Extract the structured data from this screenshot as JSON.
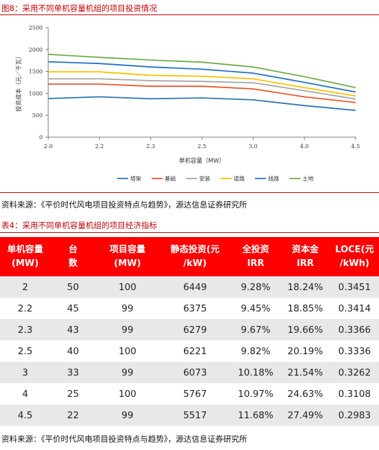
{
  "figure": {
    "caption": "图8：采用不同单机容量机组的项目投资情况",
    "source": "资料来源：《平价时代风电项目投资特点与趋势》，源达信息证券研究所"
  },
  "chart_data": {
    "type": "line",
    "categories": [
      "2.0",
      "2.2",
      "2.3",
      "2.5",
      "3.0",
      "4.0",
      "4.5"
    ],
    "ylabel": "投资成本（元／千瓦）",
    "xlabel": "单机容量（MW）",
    "ylim": [
      0,
      2500
    ],
    "yticks": [
      0,
      500,
      1000,
      1500,
      2000,
      2500
    ],
    "grid": false,
    "legend": "bottom",
    "series": [
      {
        "name": "塔架",
        "color": "#2e75b6",
        "values": [
          880,
          920,
          875,
          895,
          850,
          720,
          610
        ]
      },
      {
        "name": "基础",
        "color": "#e8562a",
        "values": [
          1210,
          1210,
          1160,
          1160,
          1100,
          920,
          790
        ]
      },
      {
        "name": "安装",
        "color": "#a5a5a5",
        "values": [
          1330,
          1330,
          1290,
          1270,
          1240,
          1060,
          870
        ]
      },
      {
        "name": "道路",
        "color": "#ffc000",
        "values": [
          1490,
          1490,
          1410,
          1390,
          1330,
          1130,
          940
        ]
      },
      {
        "name": "线路",
        "color": "#1f6fc4",
        "values": [
          1720,
          1680,
          1600,
          1550,
          1460,
          1250,
          1030
        ]
      },
      {
        "name": "土地",
        "color": "#70ad47",
        "values": [
          1890,
          1820,
          1760,
          1710,
          1600,
          1380,
          1130
        ]
      }
    ]
  },
  "table": {
    "caption": "表4：采用不同单机容量机组的项目经济指标",
    "headers": [
      [
        "单机容量",
        "(MW)"
      ],
      [
        "台",
        "数"
      ],
      [
        "项目容量",
        "(MW)"
      ],
      [
        "静态投资(元",
        "/kW)"
      ],
      [
        "全投资",
        "IRR"
      ],
      [
        "资本金",
        "IRR"
      ],
      [
        "LOCE(元",
        "/kWh)"
      ]
    ],
    "rows": [
      [
        "2",
        "50",
        "100",
        "6449",
        "9.28%",
        "18.24%",
        "0.3451"
      ],
      [
        "2.2",
        "45",
        "99",
        "6375",
        "9.45%",
        "18.85%",
        "0.3414"
      ],
      [
        "2.3",
        "43",
        "99",
        "6279",
        "9.67%",
        "19.66%",
        "0.3366"
      ],
      [
        "2.5",
        "40",
        "100",
        "6221",
        "9.82%",
        "20.19%",
        "0.3336"
      ],
      [
        "3",
        "33",
        "99",
        "6073",
        "10.18%",
        "21.54%",
        "0.3262"
      ],
      [
        "4",
        "25",
        "100",
        "5767",
        "10.97%",
        "24.63%",
        "0.3108"
      ],
      [
        "4.5",
        "22",
        "99",
        "5517",
        "11.68%",
        "27.49%",
        "0.2983"
      ]
    ],
    "source": "资料来源：《平价时代风电项目投资特点与趋势》，源达信息证券研究所"
  }
}
